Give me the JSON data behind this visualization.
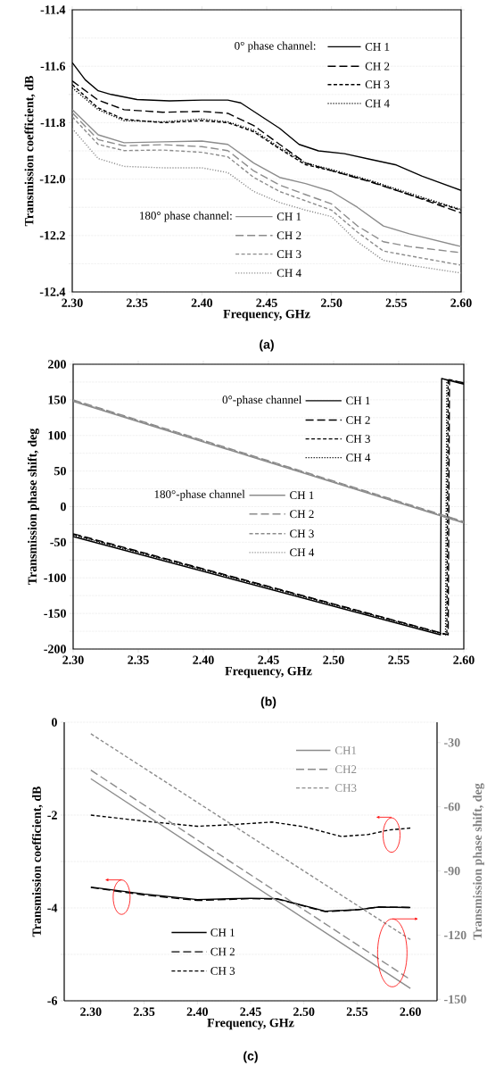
{
  "chart_data": [
    {
      "type": "line",
      "title": "(a)",
      "xlabel": "Frequency, GHz",
      "ylabel": "Transmission coefficient, dB",
      "xlim": [
        2.3,
        2.6
      ],
      "ylim": [
        -12.4,
        -11.4
      ],
      "grid": "y",
      "legend": "center",
      "xticks": [
        {
          "value": 2.3,
          "label": "2.30"
        },
        {
          "value": 2.35,
          "label": "2.35"
        },
        {
          "value": 2.4,
          "label": "2.40"
        },
        {
          "value": 2.45,
          "label": "2.45"
        },
        {
          "value": 2.5,
          "label": "2.50"
        },
        {
          "value": 2.55,
          "label": "2.55"
        },
        {
          "value": 2.6,
          "label": "2.60"
        }
      ],
      "yticks": [
        -12.4,
        {
          "value": -12.3,
          "label": null
        },
        -12.2,
        {
          "value": -12.1,
          "label": null
        },
        {
          "value": -12.0,
          "label": "-12.0"
        },
        {
          "value": -11.9,
          "label": null
        },
        -11.8,
        {
          "value": -11.7,
          "label": null
        },
        -11.6,
        {
          "value": -11.5,
          "label": null
        },
        -11.4
      ],
      "annotations": [
        "0° phase channel:",
        "180° phase channel:"
      ],
      "series": [
        {
          "name": "CH 1",
          "color": "#000000",
          "line_style": "solid",
          "x": [
            2.3,
            2.31,
            2.32,
            2.33,
            2.35,
            2.375,
            2.4,
            2.42,
            2.43,
            2.45,
            2.46,
            2.475,
            2.49,
            2.51,
            2.53,
            2.55,
            2.57,
            2.6
          ],
          "values": [
            -11.587,
            -11.648,
            -11.687,
            -11.7,
            -11.718,
            -11.723,
            -11.72,
            -11.72,
            -11.73,
            -11.79,
            -11.82,
            -11.877,
            -11.9,
            -11.91,
            -11.93,
            -11.95,
            -11.99,
            -12.04
          ]
        },
        {
          "name": "CH 2",
          "color": "#000000",
          "line_style": "long dashed",
          "x": [
            2.3,
            2.32,
            2.34,
            2.37,
            2.4,
            2.42,
            2.44,
            2.46,
            2.48,
            2.5,
            2.53,
            2.56,
            2.6
          ],
          "values": [
            -11.652,
            -11.72,
            -11.754,
            -11.763,
            -11.76,
            -11.767,
            -11.81,
            -11.877,
            -11.943,
            -11.97,
            -12.01,
            -12.055,
            -12.12
          ]
        },
        {
          "name": "CH 3",
          "color": "#000000",
          "line_style": "dashed",
          "x": [
            2.3,
            2.32,
            2.34,
            2.37,
            2.4,
            2.42,
            2.44,
            2.46,
            2.48,
            2.5,
            2.53,
            2.56,
            2.6
          ],
          "values": [
            -11.665,
            -11.748,
            -11.788,
            -11.8,
            -11.793,
            -11.8,
            -11.832,
            -11.893,
            -11.949,
            -11.97,
            -12.008,
            -12.055,
            -12.11
          ]
        },
        {
          "name": "CH 4",
          "color": "#000000",
          "line_style": "dotted",
          "x": [
            2.3,
            2.32,
            2.34,
            2.37,
            2.4,
            2.42,
            2.44,
            2.46,
            2.48,
            2.5,
            2.53,
            2.56,
            2.6
          ],
          "values": [
            -11.676,
            -11.754,
            -11.793,
            -11.797,
            -11.787,
            -11.797,
            -11.827,
            -11.888,
            -11.943,
            -11.966,
            -12.005,
            -12.05,
            -12.108
          ]
        },
        {
          "name": "CH 1",
          "color": "#8c8c8c",
          "line_style": "solid",
          "x": [
            2.3,
            2.32,
            2.34,
            2.37,
            2.4,
            2.42,
            2.44,
            2.46,
            2.48,
            2.5,
            2.52,
            2.54,
            2.56,
            2.6
          ],
          "values": [
            -11.754,
            -11.843,
            -11.871,
            -11.868,
            -11.865,
            -11.877,
            -11.943,
            -11.994,
            -12.016,
            -12.044,
            -12.1,
            -12.166,
            -12.194,
            -12.239
          ]
        },
        {
          "name": "CH 2",
          "color": "#8c8c8c",
          "line_style": "long dashed",
          "x": [
            2.3,
            2.32,
            2.34,
            2.37,
            2.4,
            2.42,
            2.44,
            2.46,
            2.48,
            2.5,
            2.52,
            2.54,
            2.56,
            2.6
          ],
          "values": [
            -11.765,
            -11.86,
            -11.882,
            -11.878,
            -11.885,
            -11.899,
            -11.971,
            -12.021,
            -12.055,
            -12.088,
            -12.166,
            -12.222,
            -12.239,
            -12.261
          ]
        },
        {
          "name": "CH 3",
          "color": "#8c8c8c",
          "line_style": "dashed",
          "x": [
            2.3,
            2.32,
            2.34,
            2.37,
            2.4,
            2.42,
            2.44,
            2.46,
            2.48,
            2.5,
            2.52,
            2.54,
            2.56,
            2.6
          ],
          "values": [
            -11.779,
            -11.877,
            -11.899,
            -11.897,
            -11.905,
            -11.921,
            -11.994,
            -12.044,
            -12.077,
            -12.11,
            -12.188,
            -12.255,
            -12.272,
            -12.305
          ]
        },
        {
          "name": "CH 4",
          "color": "#8c8c8c",
          "line_style": "dotted",
          "x": [
            2.3,
            2.32,
            2.34,
            2.37,
            2.4,
            2.42,
            2.44,
            2.46,
            2.48,
            2.5,
            2.52,
            2.54,
            2.56,
            2.6
          ],
          "values": [
            -11.821,
            -11.927,
            -11.955,
            -11.96,
            -11.96,
            -11.977,
            -12.044,
            -12.083,
            -12.11,
            -12.133,
            -12.222,
            -12.288,
            -12.305,
            -12.333
          ]
        }
      ]
    },
    {
      "type": "line",
      "title": "(b)",
      "xlabel": "Frequency, GHz",
      "ylabel": "Transmission phase shift,  deg",
      "xlim": [
        2.3,
        2.6
      ],
      "ylim": [
        -200,
        200
      ],
      "grid": "y",
      "legend": "center",
      "xticks": [
        {
          "value": 2.3,
          "label": "2.30"
        },
        {
          "value": 2.35,
          "label": "2.35"
        },
        {
          "value": 2.4,
          "label": "2.40"
        },
        {
          "value": 2.45,
          "label": "2.45"
        },
        {
          "value": 2.5,
          "label": "2.50"
        },
        {
          "value": 2.55,
          "label": "2.55"
        },
        {
          "value": 2.6,
          "label": "2.60"
        }
      ],
      "yticks": [
        -200,
        {
          "value": -175,
          "label": null
        },
        -150,
        {
          "value": -125,
          "label": null
        },
        -100,
        {
          "value": -75,
          "label": null
        },
        -50,
        {
          "value": -25,
          "label": null
        },
        0,
        {
          "value": 25,
          "label": null
        },
        50,
        {
          "value": 75,
          "label": null
        },
        100,
        {
          "value": 125,
          "label": null
        },
        150,
        {
          "value": 175,
          "label": null
        },
        200
      ],
      "annotations": [
        "0°-phase channel",
        "180°-phase channel"
      ],
      "series": [
        {
          "name": "CH 1",
          "color": "#000000",
          "line_style": "solid",
          "x": [
            2.3,
            2.582,
            2.583,
            2.6
          ],
          "values": [
            -42,
            -180,
            180,
            172
          ]
        },
        {
          "name": "CH 2",
          "color": "#000000",
          "line_style": "long dashed",
          "x": [
            2.3,
            2.588,
            2.589,
            2.6
          ],
          "values": [
            -38,
            -180,
            178,
            174
          ]
        },
        {
          "name": "CH 3",
          "color": "#000000",
          "line_style": "dashed",
          "x": [
            2.3,
            2.587,
            2.588,
            2.6
          ],
          "values": [
            -39,
            -180,
            179,
            173
          ]
        },
        {
          "name": "CH 4",
          "color": "#000000",
          "line_style": "dotted",
          "x": [
            2.3,
            2.586,
            2.587,
            2.6
          ],
          "values": [
            -40,
            -180,
            179,
            173
          ]
        },
        {
          "name": "CH 1",
          "color": "#8c8c8c",
          "line_style": "solid",
          "x": [
            2.3,
            2.6
          ],
          "values": [
            148,
            -23
          ]
        },
        {
          "name": "CH 2",
          "color": "#8c8c8c",
          "line_style": "long dashed",
          "x": [
            2.3,
            2.6
          ],
          "values": [
            150,
            -21
          ]
        },
        {
          "name": "CH 3",
          "color": "#8c8c8c",
          "line_style": "dashed",
          "x": [
            2.3,
            2.6
          ],
          "values": [
            149,
            -22
          ]
        },
        {
          "name": "CH 4",
          "color": "#8c8c8c",
          "line_style": "dotted",
          "x": [
            2.3,
            2.6
          ],
          "values": [
            149,
            -22
          ]
        }
      ]
    },
    {
      "type": "line",
      "title": "(c)",
      "xlabel": "Frequency, GHz",
      "ylabel": "Transmission coefficient, dB",
      "y2label": "Transmission phase shift,  deg",
      "xlim": [
        2.275,
        2.625
      ],
      "ylim": [
        -6,
        0
      ],
      "y2lim": [
        -150.7,
        -20.5
      ],
      "grid": "y",
      "legend": "right",
      "xticks": [
        {
          "value": 2.3,
          "label": "2.30"
        },
        {
          "value": 2.35,
          "label": "2.35"
        },
        {
          "value": 2.4,
          "label": "2.40"
        },
        {
          "value": 2.45,
          "label": "2.45"
        },
        {
          "value": 2.5,
          "label": "2.50"
        },
        {
          "value": 2.55,
          "label": "2.55"
        },
        {
          "value": 2.6,
          "label": "2.60"
        }
      ],
      "yticks": [
        -6,
        {
          "value": -5,
          "label": null
        },
        -4,
        {
          "value": -3,
          "label": null
        },
        -2,
        {
          "value": -1,
          "label": null
        },
        0
      ],
      "y2ticks": [
        -150,
        -120,
        -90,
        -60,
        -30
      ],
      "series": [
        {
          "name": "CH1",
          "color": "#8c8c8c",
          "line_style": "solid",
          "axis": "y2",
          "x": [
            2.3,
            2.6
          ],
          "values": [
            -46.9,
            -144.9
          ]
        },
        {
          "name": "CH2",
          "color": "#8c8c8c",
          "line_style": "long dashed",
          "axis": "y2",
          "x": [
            2.3,
            2.6
          ],
          "values": [
            -42.9,
            -140.8
          ]
        },
        {
          "name": "CH3",
          "color": "#8c8c8c",
          "line_style": "dashed",
          "axis": "y2",
          "x": [
            2.3,
            2.6
          ],
          "values": [
            -25.9,
            -122.1
          ]
        },
        {
          "name": "CH 1",
          "color": "#000000",
          "line_style": "solid",
          "x": [
            2.3,
            2.35,
            2.4,
            2.45,
            2.475,
            2.5,
            2.52,
            2.55,
            2.57,
            2.6
          ],
          "values": [
            -3.55,
            -3.7,
            -3.82,
            -3.79,
            -3.8,
            -3.95,
            -4.07,
            -4.04,
            -3.98,
            -3.99
          ]
        },
        {
          "name": "CH 2",
          "color": "#000000",
          "line_style": "long dashed",
          "x": [
            2.3,
            2.35,
            2.4,
            2.45,
            2.475,
            2.5,
            2.52,
            2.55,
            2.57,
            2.6
          ],
          "values": [
            -3.56,
            -3.72,
            -3.84,
            -3.8,
            -3.81,
            -3.96,
            -4.08,
            -4.04,
            -3.98,
            -3.99
          ]
        },
        {
          "name": "CH 3",
          "color": "#000000",
          "line_style": "dashed",
          "x": [
            2.3,
            2.35,
            2.4,
            2.43,
            2.47,
            2.5,
            2.535,
            2.56,
            2.58,
            2.6
          ],
          "values": [
            -2.0,
            -2.13,
            -2.24,
            -2.21,
            -2.15,
            -2.25,
            -2.46,
            -2.42,
            -2.32,
            -2.28
          ]
        }
      ]
    }
  ]
}
